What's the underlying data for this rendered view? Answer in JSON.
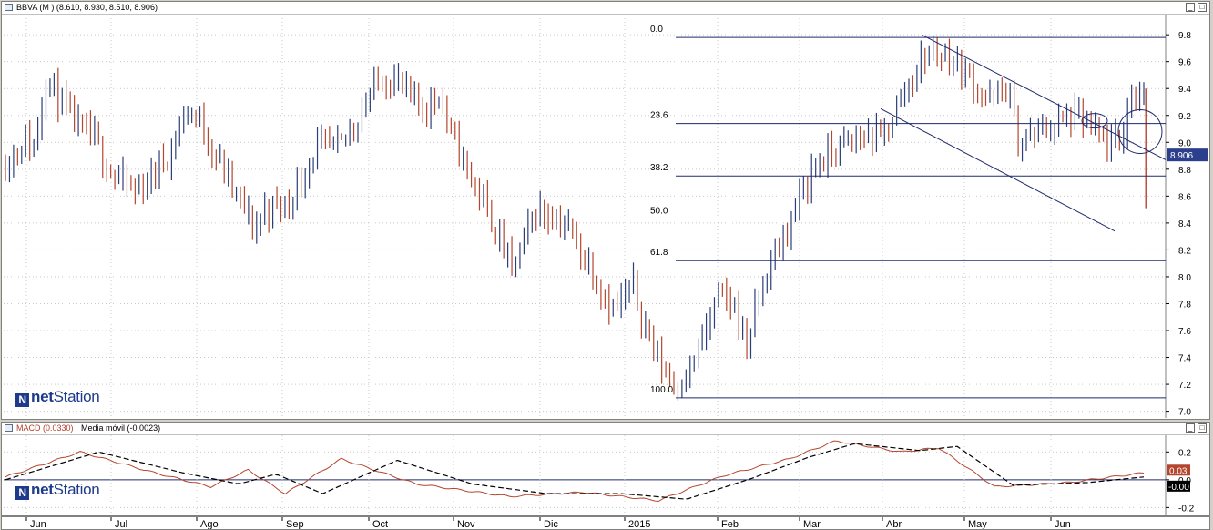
{
  "price_panel": {
    "title": "BBVA (M )",
    "ohlc_text": "(8.610, 8.930, 8.510, 8.906)",
    "last_value_label": "8.906"
  },
  "macd_panel": {
    "macd_label": "MACD (0.0330)",
    "signal_label": "Media móvil (-0.0023)",
    "macd_value_label": "0.03",
    "signal_value_label": "-0.00"
  },
  "watermark": {
    "prefix": "net",
    "suffix": "Station"
  },
  "colors": {
    "up": "#2c3e7a",
    "down": "#b4462d",
    "line": "#1f2a6b",
    "macd": "#b4462d",
    "signal": "#000000",
    "badge": "#2b3f8c"
  },
  "chart_data": [
    {
      "type": "ohlc",
      "ylim": [
        6.95,
        9.95
      ],
      "yticks": [
        7.0,
        7.2,
        7.4,
        7.6,
        7.8,
        8.0,
        8.2,
        8.4,
        8.6,
        8.8,
        9.0,
        9.2,
        9.4,
        9.6,
        9.8
      ],
      "ytick_labels": [
        "7.0",
        "7.2",
        "7.4",
        "7.6",
        "7.8",
        "8.0",
        "8.2",
        "8.4",
        "8.6",
        "8.8",
        "9.0",
        "9.2",
        "9.4",
        "9.6",
        "9.8"
      ],
      "x_months": [
        "Jun",
        "Jul",
        "Ago",
        "Sep",
        "Oct",
        "Nov",
        "Dic",
        "2015",
        "Feb",
        "Mar",
        "Abr",
        "May",
        "Jun"
      ],
      "bar_count": 290,
      "anchors": [
        [
          0,
          8.85
        ],
        [
          10,
          9.02
        ],
        [
          14,
          8.95
        ],
        [
          20,
          9.5
        ],
        [
          27,
          9.3
        ],
        [
          35,
          9.12
        ],
        [
          45,
          9.0
        ],
        [
          53,
          8.75
        ],
        [
          65,
          8.63
        ],
        [
          80,
          8.9
        ],
        [
          90,
          9.25
        ],
        [
          96,
          9.15
        ],
        [
          110,
          8.72
        ],
        [
          123,
          8.35
        ],
        [
          128,
          8.5
        ],
        [
          140,
          8.55
        ],
        [
          153,
          8.95
        ],
        [
          165,
          8.96
        ],
        [
          185,
          9.48
        ],
        [
          194,
          9.45
        ],
        [
          201,
          9.3
        ],
        [
          208,
          9.26
        ],
        [
          214,
          9.38
        ],
        [
          220,
          9.05
        ],
        [
          235,
          8.58
        ],
        [
          240,
          8.42
        ],
        [
          250,
          8.05
        ],
        [
          262,
          8.5
        ],
        [
          275,
          8.42
        ],
        [
          288,
          8.1
        ],
        [
          300,
          7.75
        ],
        [
          310,
          7.92
        ],
        [
          320,
          7.45
        ],
        [
          330,
          7.2
        ],
        [
          338,
          7.3
        ],
        [
          352,
          7.85
        ],
        [
          360,
          7.78
        ],
        [
          366,
          7.5
        ],
        [
          375,
          8.0
        ],
        [
          385,
          8.32
        ],
        [
          398,
          8.8
        ],
        [
          410,
          8.95
        ],
        [
          425,
          9.05
        ],
        [
          432,
          9.02
        ],
        [
          443,
          9.35
        ],
        [
          455,
          9.68
        ],
        [
          465,
          9.65
        ],
        [
          478,
          9.45
        ],
        [
          485,
          9.3
        ],
        [
          495,
          9.4
        ],
        [
          500,
          9.0
        ],
        [
          510,
          9.08
        ],
        [
          520,
          9.15
        ],
        [
          530,
          9.2
        ],
        [
          541,
          9.0
        ],
        [
          550,
          8.98
        ],
        [
          556,
          9.35
        ],
        [
          562,
          9.4
        ]
      ],
      "fib_levels": [
        {
          "label": "0.0",
          "value": 9.78
        },
        {
          "label": "23.6",
          "value": 9.14
        },
        {
          "label": "38.2",
          "value": 8.75
        },
        {
          "label": "50.0",
          "value": 8.43
        },
        {
          "label": "61.8",
          "value": 8.12
        },
        {
          "label": "100.0",
          "value": 7.1
        }
      ],
      "last_value": 8.906
    },
    {
      "type": "line",
      "ylim": [
        -0.25,
        0.32
      ],
      "yticks": [
        0.2,
        0.0,
        -0.2
      ],
      "ytick_labels": [
        "0.2",
        "0.0",
        "-0.2"
      ],
      "series": [
        {
          "name": "MACD (0.0330)",
          "anchors": [
            [
              0,
              0.02
            ],
            [
              40,
              0.2
            ],
            [
              80,
              0.05
            ],
            [
              110,
              -0.05
            ],
            [
              130,
              0.07
            ],
            [
              150,
              -0.1
            ],
            [
              180,
              0.15
            ],
            [
              220,
              -0.03
            ],
            [
              270,
              -0.12
            ],
            [
              310,
              -0.09
            ],
            [
              350,
              -0.15
            ],
            [
              385,
              0.03
            ],
            [
              420,
              0.15
            ],
            [
              445,
              0.28
            ],
            [
              480,
              0.2
            ],
            [
              500,
              0.23
            ],
            [
              530,
              -0.05
            ],
            [
              570,
              -0.02
            ],
            [
              610,
              0.05
            ]
          ]
        },
        {
          "name": "Media móvil (-0.0023)",
          "anchors": [
            [
              0,
              0.0
            ],
            [
              50,
              0.2
            ],
            [
              95,
              0.05
            ],
            [
              125,
              -0.03
            ],
            [
              145,
              0.04
            ],
            [
              170,
              -0.1
            ],
            [
              210,
              0.14
            ],
            [
              250,
              -0.03
            ],
            [
              290,
              -0.1
            ],
            [
              330,
              -0.1
            ],
            [
              365,
              -0.14
            ],
            [
              400,
              0.01
            ],
            [
              430,
              0.16
            ],
            [
              455,
              0.26
            ],
            [
              490,
              0.21
            ],
            [
              510,
              0.24
            ],
            [
              540,
              -0.04
            ],
            [
              580,
              -0.02
            ],
            [
              610,
              0.02
            ]
          ]
        }
      ]
    }
  ]
}
